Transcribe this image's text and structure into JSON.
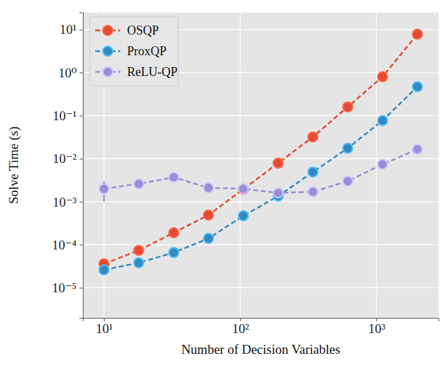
{
  "chart_data": {
    "type": "line",
    "x_label": "Number of Decision Variables",
    "y_label": "Solve Time (s)",
    "log": true,
    "grid": true,
    "legend": "upper-left",
    "x": [
      10,
      18,
      32.5,
      58.5,
      105.4,
      190,
      342,
      616,
      1110,
      2000
    ],
    "xlim": [
      7,
      2860
    ],
    "xticks": [
      {
        "value": 10,
        "label": "10¹"
      },
      {
        "value": 100,
        "label": "10²"
      },
      {
        "value": 1000,
        "label": "10³"
      }
    ],
    "ylim": [
      2e-06,
      25
    ],
    "yticks": [
      {
        "value": 1e-05,
        "label": "10⁻⁵"
      },
      {
        "value": 0.0001,
        "label": "10⁻⁴"
      },
      {
        "value": 0.001,
        "label": "10⁻³"
      },
      {
        "value": 0.01,
        "label": "10⁻²"
      },
      {
        "value": 0.1,
        "label": "10⁻¹"
      },
      {
        "value": 1,
        "label": "10⁰"
      },
      {
        "value": 10,
        "label": "10¹"
      }
    ],
    "series": [
      {
        "name": "OSQP",
        "color": "#e24a33",
        "marker": "circle",
        "line_style": "dashed",
        "values": [
          3.6e-05,
          7.4e-05,
          0.00019,
          0.00049,
          0.00195,
          0.0079,
          0.032,
          0.16,
          0.8,
          7.8
        ]
      },
      {
        "name": "ProxQP",
        "color": "#348abd",
        "marker": "circle",
        "line_style": "dashed",
        "values": [
          2.6e-05,
          3.8e-05,
          6.6e-05,
          0.00014,
          0.00047,
          0.00135,
          0.0049,
          0.0175,
          0.077,
          0.47
        ]
      },
      {
        "name": "ReLU-QP",
        "color": "#988ed5",
        "marker": "circle",
        "line_style": "dashed",
        "values": [
          0.002,
          0.0026,
          0.0037,
          0.0021,
          0.002,
          0.0016,
          0.0017,
          0.003,
          0.0074,
          0.0165
        ],
        "errors": [
          0.001,
          0.0005,
          null,
          null,
          null,
          null,
          null,
          null,
          null,
          null
        ]
      }
    ]
  }
}
